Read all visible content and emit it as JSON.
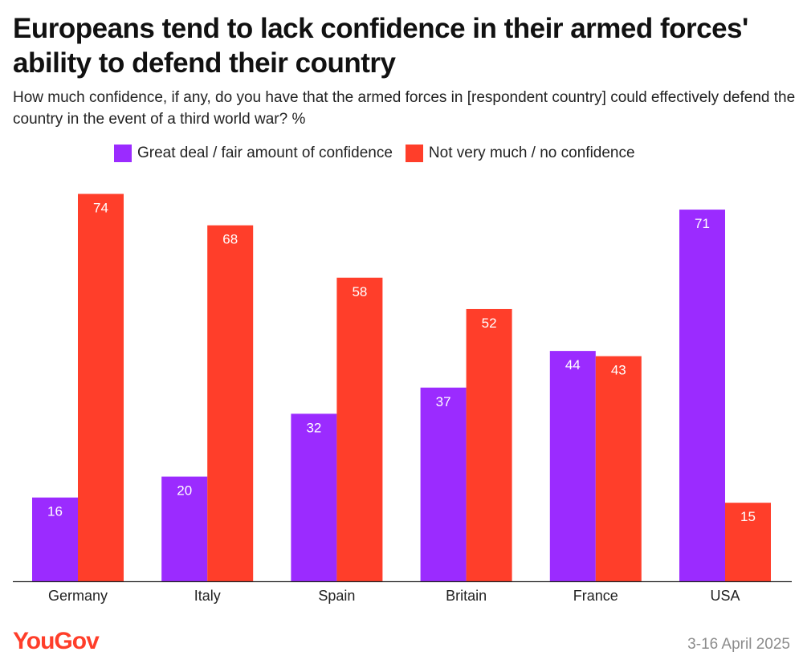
{
  "header": {
    "title": "Europeans tend to lack confidence in their armed forces' ability to defend their country",
    "subtitle": "How much confidence, if any, do you have that the armed forces in [respondent country] could effectively defend the country in the event of a third world war? %"
  },
  "footer": {
    "logo": "YouGov",
    "date": "3-16 April 2025"
  },
  "colors": {
    "confident": "#9b2bff",
    "not_confident": "#ff3e2a",
    "logo": "#ff3e2a"
  },
  "chart_data": {
    "type": "bar",
    "title": "Europeans tend to lack confidence in their armed forces' ability to defend their country",
    "xlabel": "",
    "ylabel": "%",
    "ylim": [
      0,
      80
    ],
    "grid": false,
    "legend_position": "top",
    "categories": [
      "Germany",
      "Italy",
      "Spain",
      "Britain",
      "France",
      "USA"
    ],
    "series": [
      {
        "name": "Great deal / fair amount of confidence",
        "color": "#9b2bff",
        "values": [
          16,
          20,
          32,
          37,
          44,
          71
        ]
      },
      {
        "name": "Not very much / no confidence",
        "color": "#ff3e2a",
        "values": [
          74,
          68,
          58,
          52,
          43,
          15
        ]
      }
    ]
  }
}
